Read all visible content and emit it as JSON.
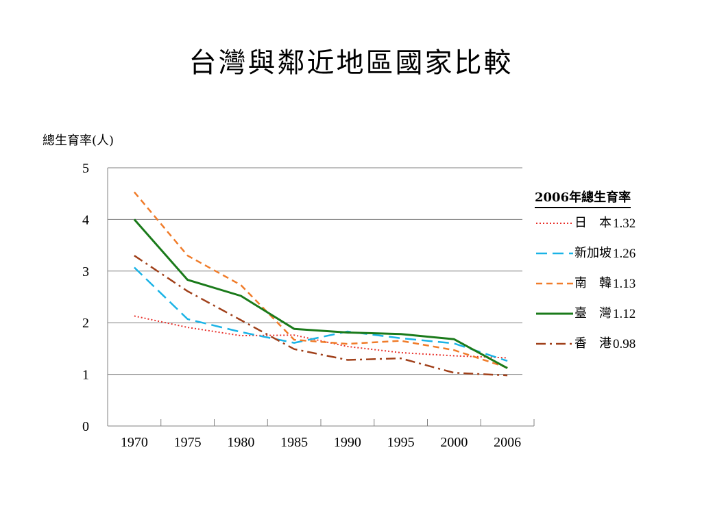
{
  "slide": {
    "title": "台灣與鄰近地區國家比較"
  },
  "chart_data": {
    "type": "line",
    "title": "台灣與鄰近地區國家比較",
    "ylabel": "總生育率(人)",
    "xlabel": "",
    "categories": [
      "1970",
      "1975",
      "1980",
      "1985",
      "1990",
      "1995",
      "2000",
      "2006"
    ],
    "ylim": [
      0,
      5
    ],
    "yticks": [
      "0",
      "1",
      "2",
      "3",
      "4",
      "5"
    ],
    "grid": true,
    "legend_title": "2006年總生育率",
    "legend_placement": "right",
    "series": [
      {
        "name": "日　本",
        "legend_value": "1.32",
        "color": "#e8302a",
        "dash": "dotted",
        "values": [
          2.13,
          1.91,
          1.75,
          1.76,
          1.54,
          1.42,
          1.36,
          1.32
        ]
      },
      {
        "name": "新加坡",
        "legend_value": "1.26",
        "color": "#1ab3e6",
        "dash": "long-dash",
        "values": [
          3.07,
          2.07,
          1.82,
          1.61,
          1.83,
          1.7,
          1.6,
          1.26
        ]
      },
      {
        "name": "南　韓",
        "legend_value": "1.13",
        "color": "#f07c2a",
        "dash": "dash",
        "values": [
          4.53,
          3.3,
          2.73,
          1.67,
          1.59,
          1.65,
          1.47,
          1.13
        ]
      },
      {
        "name": "臺　灣",
        "legend_value": "1.12",
        "color": "#1a7a1a",
        "dash": "solid",
        "values": [
          4.0,
          2.83,
          2.52,
          1.88,
          1.81,
          1.78,
          1.68,
          1.12
        ]
      },
      {
        "name": "香　港",
        "legend_value": "0.98",
        "color": "#a0401a",
        "dash": "dash-dot",
        "values": [
          3.3,
          2.61,
          2.05,
          1.49,
          1.28,
          1.31,
          1.03,
          0.98
        ]
      }
    ]
  }
}
